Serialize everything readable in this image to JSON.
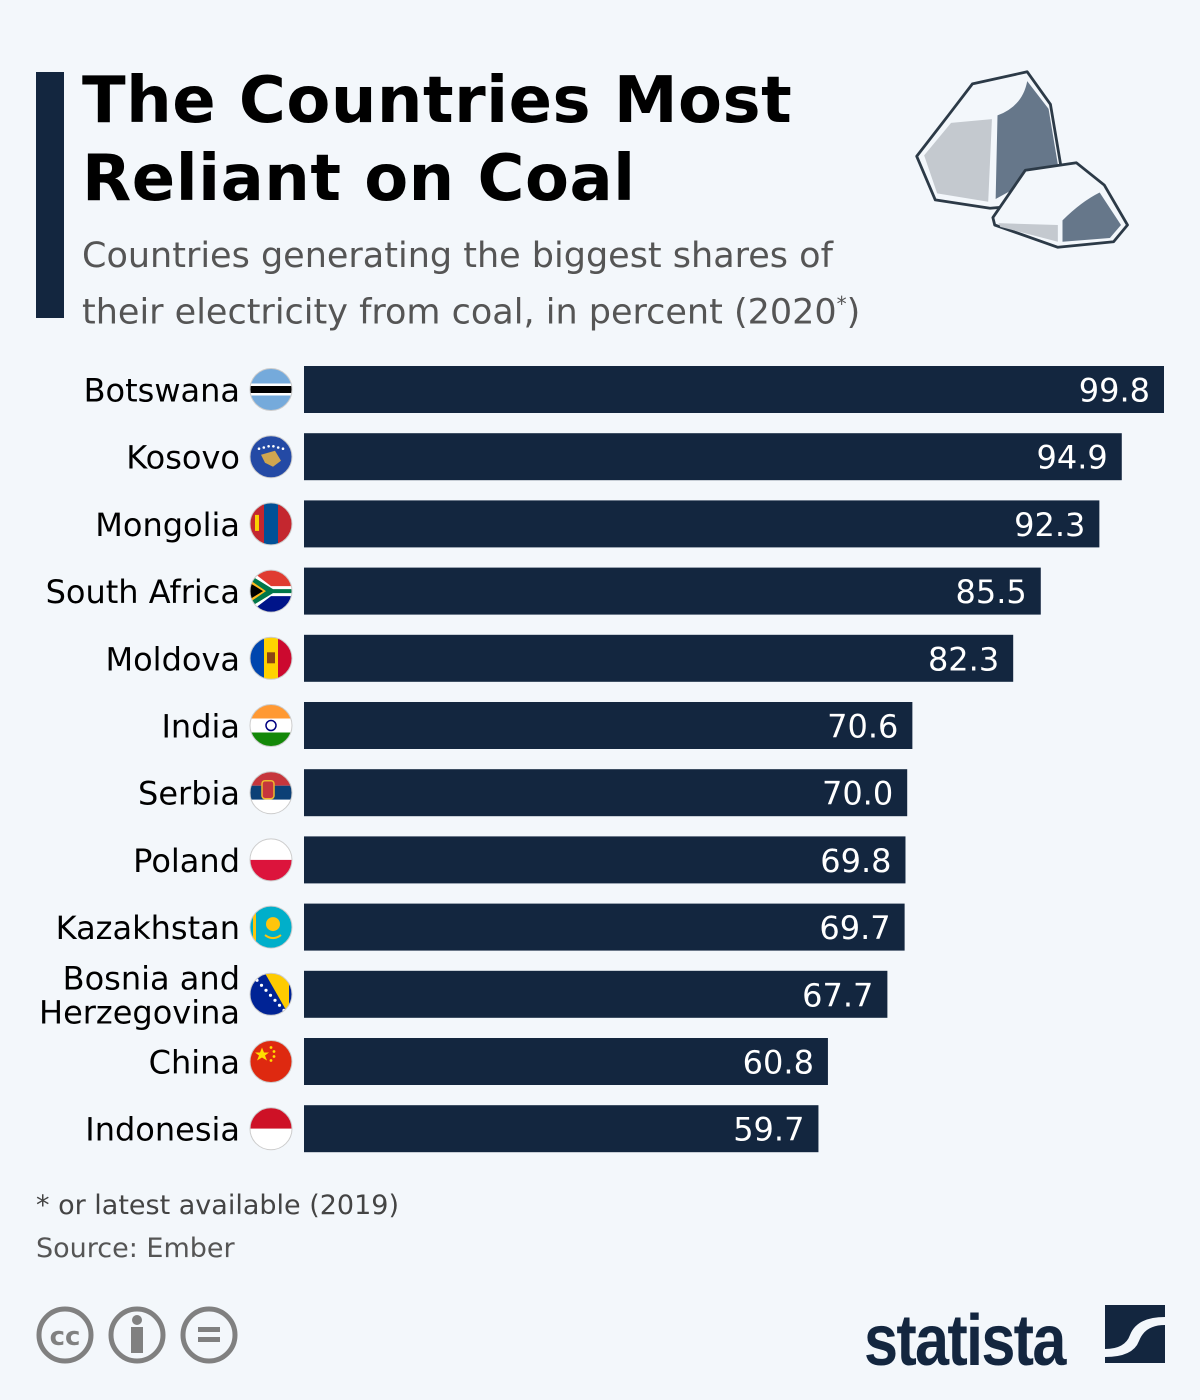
{
  "title_lines": [
    "The Countries Most",
    "Reliant on Coal"
  ],
  "subtitle": {
    "line1": "Countries generating the biggest shares of",
    "line2_pre": "their electricity from coal, in percent (2020",
    "line2_sup": "*",
    "line2_post": ")"
  },
  "chart_data": {
    "type": "bar",
    "orientation": "horizontal",
    "categories": [
      "Botswana",
      "Kosovo",
      "Mongolia",
      "South Africa",
      "Moldova",
      "India",
      "Serbia",
      "Poland",
      "Kazakhstan",
      "Bosnia and Herzegovina",
      "China",
      "Indonesia"
    ],
    "category_lines": [
      [
        "Botswana"
      ],
      [
        "Kosovo"
      ],
      [
        "Mongolia"
      ],
      [
        "South Africa"
      ],
      [
        "Moldova"
      ],
      [
        "India"
      ],
      [
        "Serbia"
      ],
      [
        "Poland"
      ],
      [
        "Kazakhstan"
      ],
      [
        "Bosnia and",
        "Herzegovina"
      ],
      [
        "China"
      ],
      [
        "Indonesia"
      ]
    ],
    "values": [
      99.8,
      94.9,
      92.3,
      85.5,
      82.3,
      70.6,
      70.0,
      69.8,
      69.7,
      67.7,
      60.8,
      59.7
    ],
    "value_labels": [
      "99.8",
      "94.9",
      "92.3",
      "85.5",
      "82.3",
      "70.6",
      "70.0",
      "69.8",
      "69.7",
      "67.7",
      "60.8",
      "59.7"
    ],
    "xlim": [
      0,
      100
    ],
    "grid": false,
    "bar_color": "#13263f",
    "flag_icons": [
      "flag-botswana",
      "flag-kosovo",
      "flag-mongolia",
      "flag-south-africa",
      "flag-moldova",
      "flag-india",
      "flag-serbia",
      "flag-poland",
      "flag-kazakhstan",
      "flag-bosnia",
      "flag-china",
      "flag-indonesia"
    ]
  },
  "footnote": "* or latest available (2019)",
  "source": "Source: Ember",
  "logo": "statista"
}
